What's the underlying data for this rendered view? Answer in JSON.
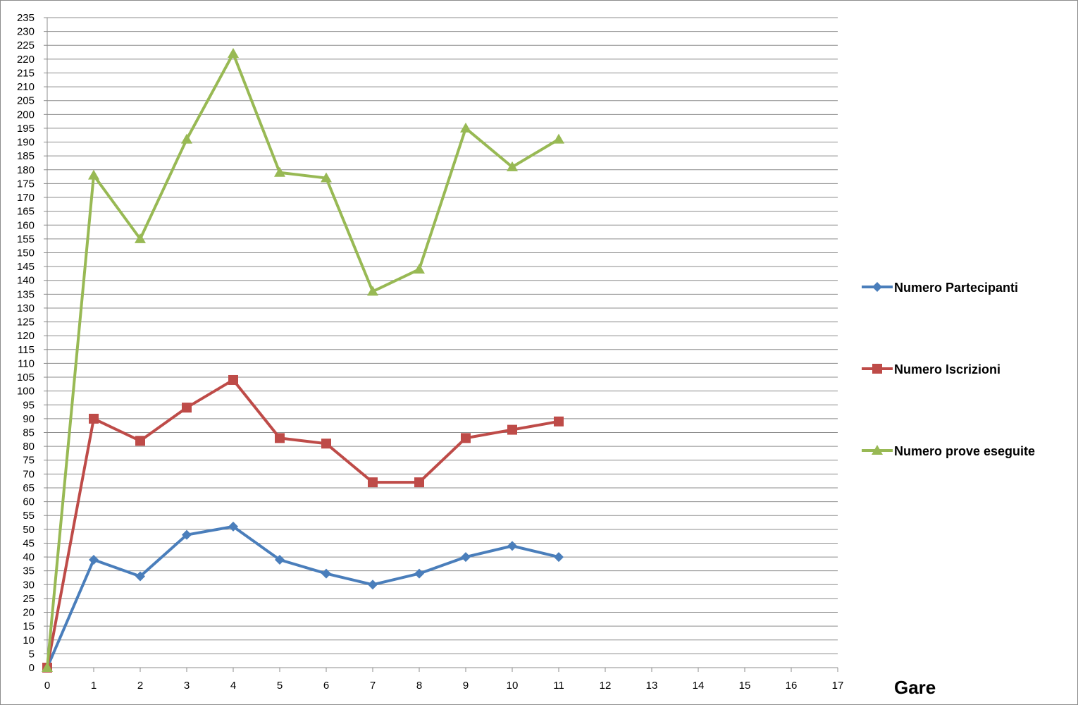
{
  "chart_data": {
    "type": "line",
    "title": "",
    "xlabel": "Gare",
    "ylabel": "",
    "xlim": [
      0,
      17
    ],
    "ylim": [
      0,
      235
    ],
    "x_ticks": [
      0,
      1,
      2,
      3,
      4,
      5,
      6,
      7,
      8,
      9,
      10,
      11,
      12,
      13,
      14,
      15,
      16,
      17
    ],
    "y_ticks": [
      0,
      5,
      10,
      15,
      20,
      25,
      30,
      35,
      40,
      45,
      50,
      55,
      60,
      65,
      70,
      75,
      80,
      85,
      90,
      95,
      100,
      105,
      110,
      115,
      120,
      125,
      130,
      135,
      140,
      145,
      150,
      155,
      160,
      165,
      170,
      175,
      180,
      185,
      190,
      195,
      200,
      205,
      210,
      215,
      220,
      225,
      230,
      235
    ],
    "grid": "horizontal",
    "legend_position": "right",
    "series": [
      {
        "name": "Numero Partecipanti",
        "color": "#4a7ebb",
        "marker": "diamond",
        "x": [
          0,
          1,
          2,
          3,
          4,
          5,
          6,
          7,
          8,
          9,
          10,
          11
        ],
        "values": [
          0,
          39,
          33,
          48,
          51,
          39,
          34,
          30,
          34,
          40,
          44,
          40
        ]
      },
      {
        "name": "Numero Iscrizioni",
        "color": "#be4b48",
        "marker": "square",
        "x": [
          0,
          1,
          2,
          3,
          4,
          5,
          6,
          7,
          8,
          9,
          10,
          11
        ],
        "values": [
          0,
          90,
          82,
          94,
          104,
          83,
          81,
          67,
          67,
          83,
          86,
          89
        ]
      },
      {
        "name": "Numero prove eseguite",
        "color": "#98b954",
        "marker": "triangle",
        "x": [
          0,
          1,
          2,
          3,
          4,
          5,
          6,
          7,
          8,
          9,
          10,
          11
        ],
        "values": [
          0,
          178,
          155,
          191,
          222,
          179,
          177,
          136,
          144,
          195,
          181,
          191
        ]
      }
    ]
  }
}
